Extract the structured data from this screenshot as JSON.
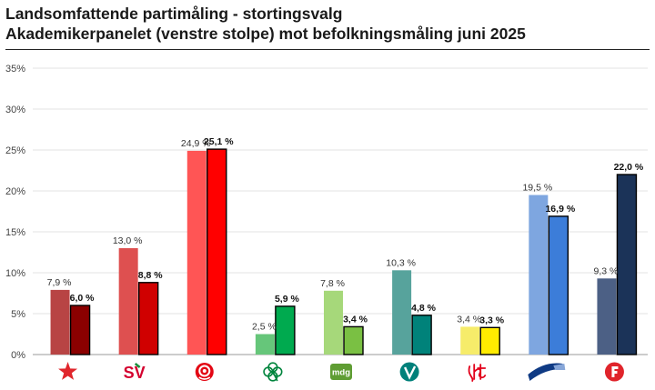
{
  "title": {
    "line1": "Landsomfattende partimåling - stortingsvalg",
    "line2": "Akademikerpanelet (venstre stolpe) mot befolkningsmåling juni 2025"
  },
  "chart_data": {
    "type": "bar",
    "categories": [
      "Rødt",
      "SV",
      "Ap",
      "Sp",
      "MDG",
      "Venstre",
      "KrF",
      "Høyre",
      "FrP"
    ],
    "series": [
      {
        "values": [
          7.9,
          13.0,
          24.9,
          2.5,
          7.8,
          10.3,
          3.4,
          19.5,
          9.3
        ],
        "labels": [
          "7,9 %",
          "13,0 %",
          "24,9 %",
          "2,5 %",
          "7,8 %",
          "10,3 %",
          "3,4 %",
          "19,5 %",
          "9,3 %"
        ]
      },
      {
        "values": [
          6.0,
          8.8,
          25.1,
          5.9,
          3.4,
          4.8,
          3.3,
          16.9,
          22.0
        ],
        "labels": [
          "6,0 %",
          "8,8 %",
          "25,1 %",
          "5,9 %",
          "3,4 %",
          "4,8 %",
          "3,3 %",
          "16,9 %",
          "22,0 %"
        ]
      }
    ],
    "colors_a": [
      "#b84444",
      "#de5050",
      "#ff5555",
      "#66c67a",
      "#a6d87a",
      "#57a39c",
      "#f6ec6a",
      "#7ea6e0",
      "#4c6085"
    ],
    "colors_b": [
      "#8b0000",
      "#d00000",
      "#ff0000",
      "#00aa4f",
      "#7ac043",
      "#00827a",
      "#ffeb00",
      "#3c7dd9",
      "#1b3358"
    ],
    "ylim": [
      0,
      35
    ],
    "yticks": [
      "0%",
      "5%",
      "10%",
      "15%",
      "20%",
      "25%",
      "30%",
      "35%"
    ],
    "grid": true,
    "logos": [
      "star-icon",
      "sv-logo",
      "rose-icon",
      "clover-icon",
      "mdg-logo",
      "v-logo",
      "krf-logo",
      "hoyre-logo",
      "frp-logo"
    ],
    "logo_texts": {
      "sv": "SV",
      "mdg": "mdg"
    }
  }
}
